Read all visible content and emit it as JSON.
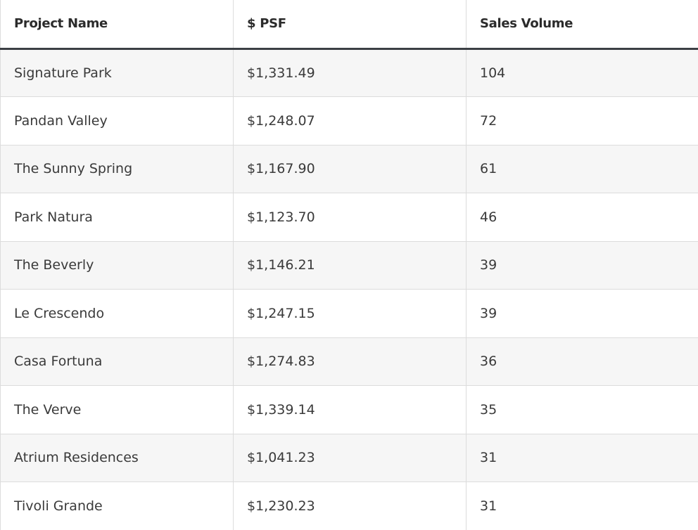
{
  "table": {
    "headers": [
      "Project Name",
      "$ PSF",
      "Sales Volume"
    ],
    "rows": [
      [
        "Signature Park",
        "$1,331.49",
        "104"
      ],
      [
        "Pandan Valley",
        "$1,248.07",
        "72"
      ],
      [
        "The Sunny Spring",
        "$1,167.90",
        "61"
      ],
      [
        "Park Natura",
        "$1,123.70",
        "46"
      ],
      [
        "The Beverly",
        "$1,146.21",
        "39"
      ],
      [
        "Le Crescendo",
        "$1,247.15",
        "39"
      ],
      [
        "Casa Fortuna",
        "$1,274.83",
        "36"
      ],
      [
        "The Verve",
        "$1,339.14",
        "35"
      ],
      [
        "Atrium Residences",
        "$1,041.23",
        "31"
      ],
      [
        "Tivoli Grande",
        "$1,230.23",
        "31"
      ]
    ]
  }
}
